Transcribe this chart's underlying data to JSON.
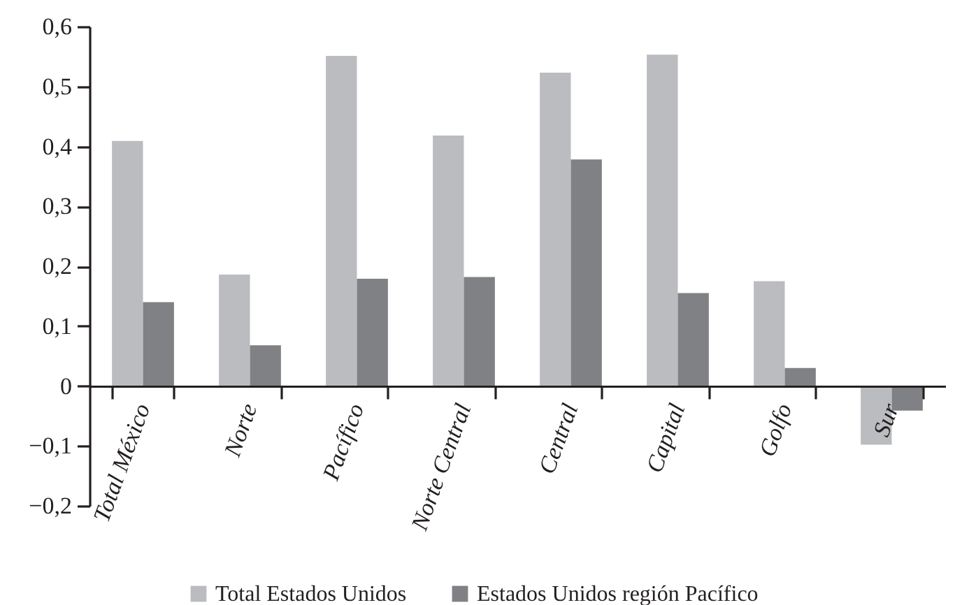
{
  "chart_data": {
    "type": "bar",
    "categories": [
      "Total México",
      "Norte",
      "Pacífico",
      "Norte Central",
      "Central",
      "Capital",
      "Golfo",
      "Sur"
    ],
    "series": [
      {
        "name": "Total Estados Unidos",
        "color": "#bbbcc0",
        "values": [
          0.409,
          0.186,
          0.551,
          0.418,
          0.523,
          0.553,
          0.175,
          -0.098
        ]
      },
      {
        "name": "Estados Unidos región Pacífico",
        "color": "#808184",
        "values": [
          0.14,
          0.068,
          0.179,
          0.182,
          0.378,
          0.155,
          0.03,
          -0.041
        ]
      }
    ],
    "ylim": [
      -0.2,
      0.6
    ],
    "yticks": [
      {
        "value": -0.2,
        "label": "−0,2"
      },
      {
        "value": -0.1,
        "label": "−0,1"
      },
      0,
      {
        "value": 0.1,
        "label": "0,1"
      },
      {
        "value": 0.2,
        "label": "0,2"
      },
      {
        "value": 0.3,
        "label": "0,3"
      },
      {
        "value": 0.4,
        "label": "0,4"
      },
      {
        "value": 0.5,
        "label": "0,5"
      },
      {
        "value": 0.6,
        "label": "0,6"
      }
    ],
    "grid": false,
    "legend": "bottom"
  }
}
